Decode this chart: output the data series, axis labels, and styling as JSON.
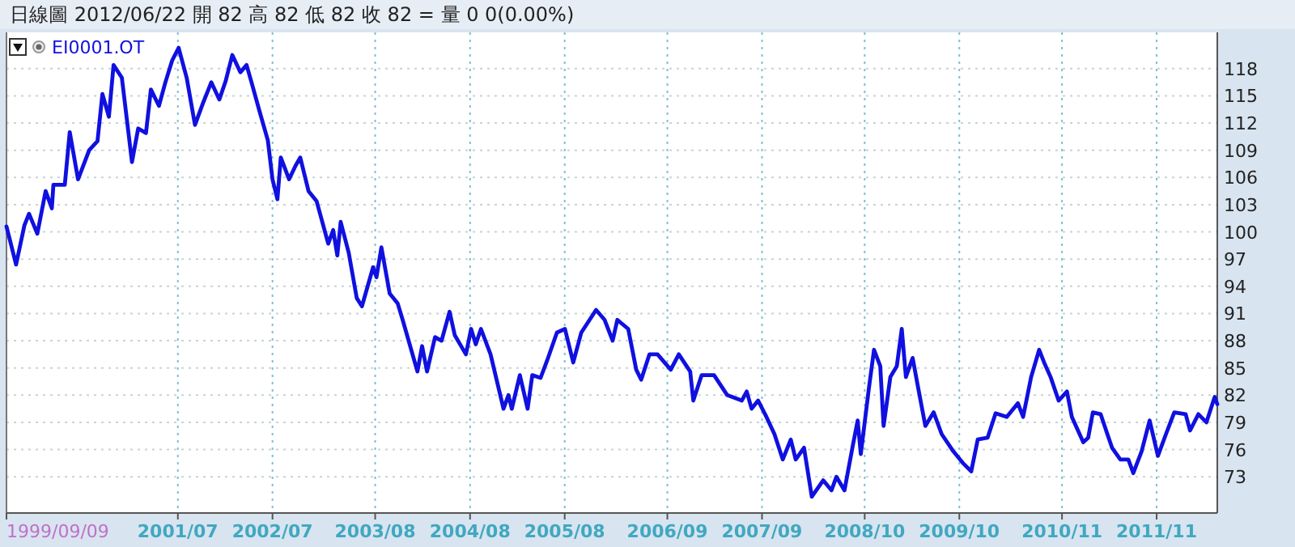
{
  "chart_data": {
    "type": "line",
    "title": "日線圖  2012/06/22  開 82  高 82  低 82  收 82 =   量 0  0(0.00%)",
    "xlim": [
      "1999-09-09",
      "2012-06-22"
    ],
    "xticks": [
      {
        "value": "1999-09-09",
        "label": "1999/09/09"
      },
      {
        "value": "2001-07-01",
        "label": "2001/07"
      },
      {
        "value": "2002-07-01",
        "label": "2002/07"
      },
      {
        "value": "2003-08-01",
        "label": "2003/08"
      },
      {
        "value": "2004-08-01",
        "label": "2004/08"
      },
      {
        "value": "2005-08-01",
        "label": "2005/08"
      },
      {
        "value": "2006-09-01",
        "label": "2006/09"
      },
      {
        "value": "2007-09-01",
        "label": "2007/09"
      },
      {
        "value": "2008-10-01",
        "label": "2008/10"
      },
      {
        "value": "2009-10-01",
        "label": "2009/10"
      },
      {
        "value": "2010-11-01",
        "label": "2010/11"
      },
      {
        "value": "2011-11-01",
        "label": "2011/11"
      }
    ],
    "ylim": [
      69,
      122
    ],
    "yticks": [
      73,
      76,
      79,
      82,
      85,
      88,
      91,
      94,
      97,
      100,
      103,
      106,
      109,
      112,
      115,
      118
    ],
    "grid": true,
    "legend": "top left",
    "line_style": "solid",
    "series": [
      {
        "name": "EI0001.OT",
        "color": "#1010e0",
        "x": [
          "1999-09-09",
          "1999-10-16",
          "1999-11-17",
          "1999-12-05",
          "2000-01-06",
          "2000-02-07",
          "2000-03-02",
          "2000-03-08",
          "2000-04-21",
          "2000-05-10",
          "2000-06-11",
          "2000-07-24",
          "2000-08-25",
          "2000-09-13",
          "2000-10-08",
          "2000-10-26",
          "2000-11-27",
          "2001-01-05",
          "2001-01-29",
          "2001-02-28",
          "2001-03-19",
          "2001-04-19",
          "2001-05-14",
          "2001-06-09",
          "2001-07-04",
          "2001-08-04",
          "2001-09-05",
          "2001-10-06",
          "2001-11-07",
          "2001-12-08",
          "2002-01-02",
          "2002-01-27",
          "2002-02-27",
          "2002-03-23",
          "2002-04-11",
          "2002-05-12",
          "2002-06-13",
          "2002-07-01",
          "2002-07-20",
          "2002-08-02",
          "2002-09-03",
          "2002-09-28",
          "2002-10-16",
          "2002-11-17",
          "2002-12-18",
          "2003-02-01",
          "2003-02-20",
          "2003-03-08",
          "2003-03-21",
          "2003-04-21",
          "2003-05-22",
          "2003-06-11",
          "2003-07-24",
          "2003-08-06",
          "2003-08-25",
          "2003-09-26",
          "2003-10-27",
          "2003-11-15",
          "2004-01-11",
          "2004-01-29",
          "2004-02-17",
          "2004-03-19",
          "2004-04-13",
          "2004-05-14",
          "2004-06-03",
          "2004-07-16",
          "2004-08-05",
          "2004-08-23",
          "2004-09-12",
          "2004-10-19",
          "2004-12-08",
          "2004-12-27",
          "2005-01-09",
          "2005-02-09",
          "2005-03-11",
          "2005-03-29",
          "2005-04-30",
          "2005-05-25",
          "2005-07-02",
          "2005-08-02",
          "2005-09-03",
          "2005-10-04",
          "2005-11-30",
          "2006-01-02",
          "2006-02-02",
          "2006-02-20",
          "2006-04-03",
          "2006-05-04",
          "2006-05-23",
          "2006-06-24",
          "2006-07-25",
          "2006-09-14",
          "2006-10-15",
          "2006-11-28",
          "2006-12-10",
          "2007-01-11",
          "2007-02-28",
          "2007-04-20",
          "2007-06-15",
          "2007-07-04",
          "2007-07-23",
          "2007-08-17",
          "2007-09-18",
          "2007-10-19",
          "2007-11-20",
          "2007-12-21",
          "2008-01-09",
          "2008-02-10",
          "2008-03-11",
          "2008-04-24",
          "2008-05-26",
          "2008-06-14",
          "2008-07-15",
          "2008-08-16",
          "2008-09-04",
          "2008-09-16",
          "2008-10-17",
          "2008-11-06",
          "2008-11-30",
          "2008-12-13",
          "2009-01-08",
          "2009-02-02",
          "2009-02-21",
          "2009-03-09",
          "2009-04-04",
          "2009-04-22",
          "2009-05-23",
          "2009-06-24",
          "2009-07-25",
          "2009-09-08",
          "2009-10-15",
          "2009-11-16",
          "2009-12-11",
          "2010-01-18",
          "2010-02-18",
          "2010-04-02",
          "2010-05-15",
          "2010-06-04",
          "2010-07-05",
          "2010-08-05",
          "2010-08-24",
          "2010-09-18",
          "2010-10-19",
          "2010-11-20",
          "2010-12-09",
          "2011-01-22",
          "2011-02-10",
          "2011-02-28",
          "2011-03-30",
          "2011-04-25",
          "2011-05-13",
          "2011-06-14",
          "2011-07-15",
          "2011-08-03",
          "2011-09-04",
          "2011-10-05",
          "2011-11-06",
          "2011-12-07",
          "2012-01-08",
          "2012-02-21",
          "2012-03-09",
          "2012-04-10",
          "2012-05-11",
          "2012-06-12",
          "2012-06-22"
        ],
        "values": [
          100.6,
          96.4,
          100.7,
          102,
          99.8,
          104.5,
          102.6,
          105.2,
          105.2,
          111,
          105.8,
          109,
          110,
          115.2,
          112.7,
          118.4,
          117,
          107.7,
          111.4,
          110.9,
          115.7,
          113.9,
          116.5,
          118.9,
          120.3,
          117,
          111.8,
          114.2,
          116.5,
          114.6,
          116.7,
          119.5,
          117.6,
          118.4,
          116.5,
          113.3,
          110.1,
          105.8,
          103.6,
          108.2,
          105.8,
          107.3,
          108.2,
          104.5,
          103.4,
          98.7,
          100.2,
          97.4,
          101.1,
          97.7,
          92.7,
          91.8,
          96.1,
          95,
          98.3,
          93.2,
          92.1,
          90.3,
          84.6,
          87.4,
          84.6,
          88.4,
          88,
          91.2,
          88.6,
          86.5,
          89.3,
          87.6,
          89.3,
          86.5,
          80.5,
          82,
          80.5,
          84.2,
          80.5,
          84.2,
          83.9,
          85.8,
          88.9,
          89.3,
          85.6,
          88.9,
          91.4,
          90.3,
          88,
          90.3,
          89.3,
          84.8,
          83.7,
          86.5,
          86.5,
          84.8,
          86.5,
          84.6,
          81.4,
          84.2,
          84.2,
          82,
          81.4,
          82.4,
          80.5,
          81.4,
          79.6,
          77.7,
          74.9,
          77.1,
          74.9,
          76.2,
          70.8,
          72.6,
          71.5,
          73,
          71.5,
          76.4,
          79.2,
          75.5,
          82.7,
          87,
          85.2,
          78.6,
          84,
          85.2,
          89.3,
          84,
          86.1,
          83.3,
          78.6,
          80.1,
          77.7,
          75.8,
          74.5,
          73.6,
          77.1,
          77.3,
          80,
          79.6,
          81.1,
          79.6,
          84,
          87,
          85.6,
          84,
          81.4,
          82.4,
          79.6,
          76.8,
          77.3,
          80.1,
          79.9,
          77.7,
          76.2,
          74.9,
          74.9,
          73.4,
          75.8,
          79.2,
          75.3,
          77.7,
          80.1,
          79.9,
          78.1,
          79.9,
          79,
          81.8,
          81
        ]
      }
    ]
  }
}
